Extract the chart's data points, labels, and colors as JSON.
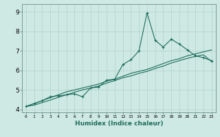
{
  "xlabel": "Humidex (Indice chaleur)",
  "ylabel": "",
  "bg_color": "#cee9e3",
  "grid_color": "#b0d0ca",
  "line_color": "#1a6b5a",
  "x_data": [
    0,
    1,
    2,
    3,
    4,
    5,
    6,
    7,
    8,
    9,
    10,
    11,
    12,
    13,
    14,
    15,
    16,
    17,
    18,
    19,
    20,
    21,
    22,
    23
  ],
  "y_main": [
    4.15,
    4.3,
    4.45,
    4.65,
    4.7,
    4.75,
    4.8,
    4.65,
    5.1,
    5.15,
    5.5,
    5.55,
    6.3,
    6.55,
    7.0,
    8.95,
    7.55,
    7.2,
    7.6,
    7.35,
    7.05,
    6.75,
    6.65,
    6.5
  ],
  "y_trend1": [
    4.15,
    4.3,
    4.45,
    4.6,
    4.75,
    4.9,
    5.0,
    5.1,
    5.2,
    5.3,
    5.45,
    5.55,
    5.7,
    5.85,
    5.95,
    6.05,
    6.2,
    6.35,
    6.5,
    6.6,
    6.75,
    6.85,
    6.95,
    7.05
  ],
  "y_trend2": [
    4.15,
    4.22,
    4.35,
    4.48,
    4.62,
    4.75,
    4.88,
    5.0,
    5.1,
    5.2,
    5.35,
    5.48,
    5.62,
    5.72,
    5.85,
    5.95,
    6.1,
    6.22,
    6.38,
    6.5,
    6.62,
    6.72,
    6.8,
    6.45
  ],
  "xticks": [
    0,
    1,
    2,
    3,
    4,
    5,
    6,
    7,
    8,
    9,
    10,
    11,
    12,
    13,
    14,
    15,
    16,
    17,
    18,
    19,
    20,
    21,
    22,
    23
  ],
  "yticks": [
    4,
    5,
    6,
    7,
    8,
    9
  ],
  "xlim": [
    -0.5,
    23.5
  ],
  "ylim": [
    3.85,
    9.4
  ]
}
